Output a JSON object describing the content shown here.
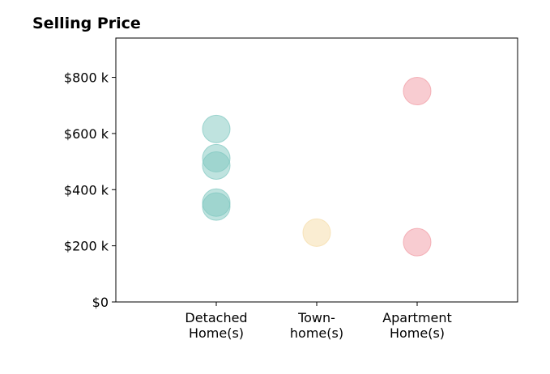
{
  "chart_data": {
    "type": "strip",
    "title": "Selling Price",
    "categories": [
      [
        "Detached",
        "Home(s)"
      ],
      [
        "Town-",
        "home(s)"
      ],
      [
        "Apartment",
        "Home(s)"
      ]
    ],
    "values": [
      [
        616000,
        512000,
        486000,
        354000,
        340000
      ],
      [
        247000
      ],
      [
        751000,
        213000
      ]
    ],
    "colors": [
      "#7fc8c0",
      "#f5dba6",
      "#f19aa3"
    ],
    "xlim": [
      -1,
      3
    ],
    "ylim": [
      0,
      940000
    ],
    "yticks": [
      {
        "value": 0,
        "label": "$0"
      },
      {
        "value": 200000,
        "label": "$200 k"
      },
      {
        "value": 400000,
        "label": "$400 k"
      },
      {
        "value": 600000,
        "label": "$600 k"
      },
      {
        "value": 800000,
        "label": "$800 k"
      }
    ]
  }
}
